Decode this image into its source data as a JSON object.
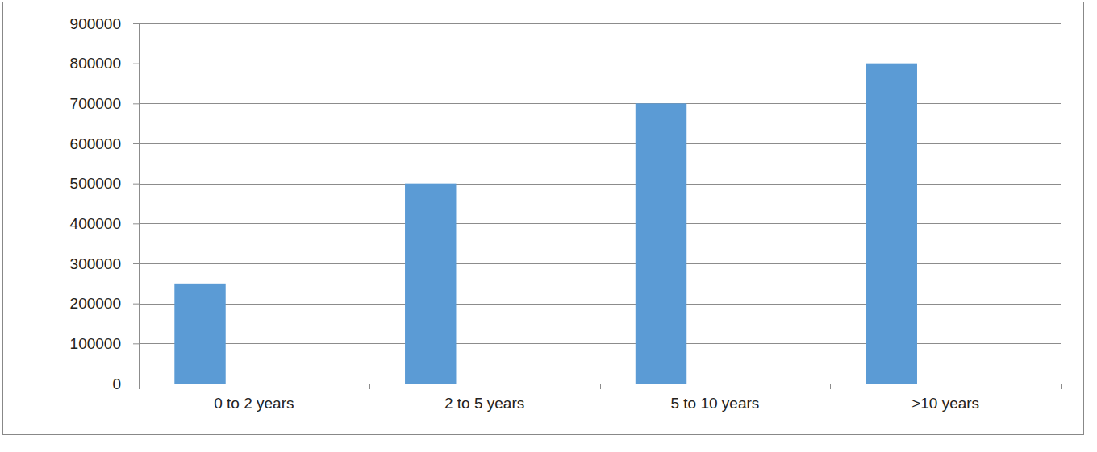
{
  "chart_data": {
    "type": "bar",
    "categories": [
      "0 to 2 years",
      "2 to 5 years",
      "5 to 10 years",
      ">10 years"
    ],
    "values": [
      250000,
      500000,
      700000,
      800000
    ],
    "color": "#5b9bd5",
    "ylim": [
      0,
      900000
    ],
    "yticks": [
      0,
      100000,
      200000,
      300000,
      400000,
      500000,
      600000,
      700000,
      800000,
      900000
    ],
    "grid": true
  }
}
